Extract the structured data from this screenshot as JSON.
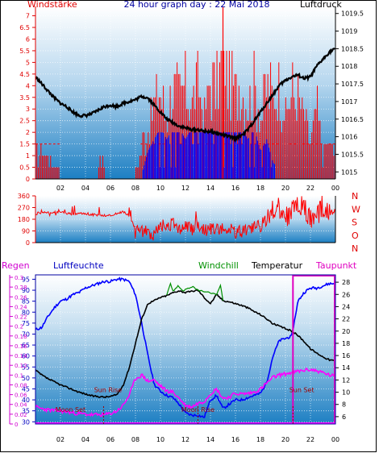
{
  "chart_data": [
    {
      "id": "wind_pressure",
      "type": "line",
      "title": "24 hour graph day : 22 Mai 2018",
      "left_label": "Windstärke",
      "right_label": "Luftdruck",
      "x_ticks": [
        "02",
        "04",
        "06",
        "08",
        "10",
        "12",
        "14",
        "16",
        "18",
        "20",
        "22",
        "00"
      ],
      "left_ticks": [
        "0",
        "0.5",
        "1",
        "1.5",
        "2",
        "2.5",
        "3",
        "3.5",
        "4",
        "4.5",
        "5",
        "5.5",
        "6",
        "6.5",
        "7"
      ],
      "right_ticks": [
        "1015",
        "1015.5",
        "1016",
        "1016.5",
        "1017",
        "1017.5",
        "1018",
        "1018.5",
        "1019",
        "1019.5"
      ],
      "ylim_left": [
        0,
        7.4
      ],
      "ylim_right": [
        1014.8,
        1019.7
      ],
      "pressure": [
        [
          0.0,
          1017.7
        ],
        [
          0.5,
          1017.5
        ],
        [
          1.0,
          1017.3
        ],
        [
          1.5,
          1017.1
        ],
        [
          2.0,
          1016.95
        ],
        [
          2.5,
          1016.85
        ],
        [
          3.0,
          1016.7
        ],
        [
          3.5,
          1016.6
        ],
        [
          4.0,
          1016.6
        ],
        [
          4.5,
          1016.65
        ],
        [
          5.0,
          1016.75
        ],
        [
          5.5,
          1016.85
        ],
        [
          6.0,
          1016.9
        ],
        [
          6.5,
          1016.85
        ],
        [
          7.0,
          1016.95
        ],
        [
          7.5,
          1017.0
        ],
        [
          8.0,
          1017.05
        ],
        [
          8.5,
          1017.15
        ],
        [
          9.0,
          1017.1
        ],
        [
          9.5,
          1016.9
        ],
        [
          10.0,
          1016.7
        ],
        [
          10.5,
          1016.5
        ],
        [
          11.0,
          1016.4
        ],
        [
          11.5,
          1016.3
        ],
        [
          12.0,
          1016.25
        ],
        [
          12.5,
          1016.2
        ],
        [
          13.0,
          1016.2
        ],
        [
          13.5,
          1016.15
        ],
        [
          14.0,
          1016.15
        ],
        [
          14.5,
          1016.1
        ],
        [
          15.0,
          1016.05
        ],
        [
          15.5,
          1016.0
        ],
        [
          16.0,
          1015.95
        ],
        [
          16.5,
          1016.05
        ],
        [
          17.0,
          1016.2
        ],
        [
          17.5,
          1016.45
        ],
        [
          18.0,
          1016.7
        ],
        [
          18.5,
          1016.95
        ],
        [
          19.0,
          1017.2
        ],
        [
          19.5,
          1017.45
        ],
        [
          20.0,
          1017.6
        ],
        [
          20.5,
          1017.7
        ],
        [
          21.0,
          1017.75
        ],
        [
          21.5,
          1017.65
        ],
        [
          22.0,
          1017.7
        ],
        [
          22.5,
          1018.0
        ],
        [
          23.0,
          1018.2
        ],
        [
          23.5,
          1018.4
        ],
        [
          24.0,
          1018.5
        ]
      ],
      "wind_gust": [
        [
          0.0,
          1.5
        ],
        [
          1.0,
          1.5
        ],
        [
          2.0,
          0
        ],
        [
          3.0,
          0
        ],
        [
          4.0,
          0
        ],
        [
          5.0,
          0
        ],
        [
          5.2,
          1.5
        ],
        [
          5.6,
          0
        ],
        [
          6.0,
          0
        ],
        [
          7.0,
          0
        ],
        [
          8.0,
          0
        ],
        [
          8.5,
          2.0
        ],
        [
          9.0,
          2.5
        ],
        [
          9.5,
          4.5
        ],
        [
          10.0,
          5.0
        ],
        [
          10.5,
          3.5
        ],
        [
          11.0,
          5.5
        ],
        [
          11.5,
          4.5
        ],
        [
          12.0,
          5.5
        ],
        [
          12.5,
          4.0
        ],
        [
          13.0,
          5.5
        ],
        [
          13.5,
          3.5
        ],
        [
          14.0,
          5.5
        ],
        [
          14.5,
          5.0
        ],
        [
          15.0,
          7.5
        ],
        [
          15.5,
          5.5
        ],
        [
          16.0,
          5.0
        ],
        [
          16.5,
          5.5
        ],
        [
          17.0,
          4.0
        ],
        [
          17.5,
          5.5
        ],
        [
          18.0,
          3.5
        ],
        [
          18.5,
          5.5
        ],
        [
          19.0,
          4.5
        ],
        [
          19.5,
          5.5
        ],
        [
          20.0,
          3.5
        ],
        [
          20.5,
          5.0
        ],
        [
          21.0,
          4.5
        ],
        [
          21.5,
          3.5
        ],
        [
          22.0,
          2.0
        ],
        [
          22.5,
          4.0
        ],
        [
          23.0,
          1.5
        ],
        [
          23.5,
          2.0
        ],
        [
          24.0,
          1.5
        ]
      ],
      "wind_avg": [
        [
          0.0,
          0
        ],
        [
          8.5,
          0
        ],
        [
          9.0,
          1.0
        ],
        [
          9.5,
          1.5
        ],
        [
          10.0,
          2.0
        ],
        [
          10.5,
          1.5
        ],
        [
          11.0,
          2.0
        ],
        [
          11.5,
          2.0
        ],
        [
          12.0,
          1.5
        ],
        [
          12.5,
          2.0
        ],
        [
          13.0,
          2.0
        ],
        [
          13.5,
          2.0
        ],
        [
          14.0,
          2.0
        ],
        [
          14.5,
          2.0
        ],
        [
          15.0,
          2.0
        ],
        [
          15.5,
          2.0
        ],
        [
          16.0,
          2.0
        ],
        [
          16.5,
          2.0
        ],
        [
          17.0,
          1.5
        ],
        [
          17.5,
          2.0
        ],
        [
          18.0,
          1.0
        ],
        [
          18.5,
          1.5
        ],
        [
          19.0,
          0.5
        ],
        [
          20.0,
          0
        ],
        [
          24.0,
          0
        ]
      ]
    },
    {
      "id": "wind_direction",
      "type": "line",
      "left_ticks": [
        "0",
        "90",
        "180",
        "270",
        "360"
      ],
      "right_labels": [
        "N",
        "W",
        "S",
        "O",
        "N"
      ],
      "ylim": [
        0,
        360
      ],
      "direction": [
        [
          0.0,
          225
        ],
        [
          1.0,
          230
        ],
        [
          2.0,
          240
        ],
        [
          3.0,
          215
        ],
        [
          4.0,
          225
        ],
        [
          5.0,
          210
        ],
        [
          6.0,
          210
        ],
        [
          7.0,
          240
        ],
        [
          7.5,
          210
        ],
        [
          8.0,
          100
        ],
        [
          8.5,
          90
        ],
        [
          9.0,
          80
        ],
        [
          9.5,
          60
        ],
        [
          10.0,
          120
        ],
        [
          10.5,
          110
        ],
        [
          11.0,
          150
        ],
        [
          11.5,
          100
        ],
        [
          12.0,
          140
        ],
        [
          12.5,
          100
        ],
        [
          13.0,
          130
        ],
        [
          13.5,
          90
        ],
        [
          14.0,
          110
        ],
        [
          14.5,
          120
        ],
        [
          15.0,
          100
        ],
        [
          15.5,
          110
        ],
        [
          16.0,
          80
        ],
        [
          16.5,
          90
        ],
        [
          17.0,
          100
        ],
        [
          17.5,
          120
        ],
        [
          18.0,
          150
        ],
        [
          18.5,
          220
        ],
        [
          19.0,
          260
        ],
        [
          19.5,
          280
        ],
        [
          20.0,
          200
        ],
        [
          20.5,
          240
        ],
        [
          21.0,
          280
        ],
        [
          21.5,
          260
        ],
        [
          22.0,
          200
        ],
        [
          22.5,
          230
        ],
        [
          23.0,
          240
        ],
        [
          23.5,
          220
        ],
        [
          24.0,
          230
        ]
      ]
    },
    {
      "id": "humidity_temperature",
      "type": "line",
      "left_label_1": "Regen",
      "left_label_2": "Luftfeuchte",
      "right_labels": [
        "Windchill",
        "Temperatur",
        "Taupunkt"
      ],
      "rain_ticks": [
        "0",
        "0.02",
        "0.04",
        "0.06",
        "0.08",
        "0.1",
        "0.12",
        "0.14",
        "0.16",
        "0.18",
        "0.2",
        "0.22",
        "0.24",
        "0.26",
        "0.28",
        "0.3"
      ],
      "humidity_ticks": [
        "30",
        "35",
        "40",
        "45",
        "50",
        "55",
        "60",
        "65",
        "70",
        "75",
        "80",
        "85",
        "90",
        "95"
      ],
      "temp_ticks": [
        "6",
        "8",
        "10",
        "12",
        "14",
        "16",
        "18",
        "20",
        "22",
        "24",
        "26",
        "28"
      ],
      "ylim_humidity": [
        29,
        97
      ],
      "ylim_temp": [
        4.8,
        29.2
      ],
      "annotations": [
        {
          "text": "Moon Set",
          "x": 2.8,
          "y": 6.8
        },
        {
          "text": "Sun Rise",
          "x": 5.8,
          "y": 10.0
        },
        {
          "text": "Moon Rise",
          "x": 13.0,
          "y": 6.8
        },
        {
          "text": "Sun Set",
          "x": 21.3,
          "y": 10.0
        }
      ],
      "humidity": [
        [
          0.0,
          72
        ],
        [
          0.5,
          73
        ],
        [
          1.0,
          78
        ],
        [
          1.5,
          82
        ],
        [
          2.0,
          85
        ],
        [
          2.5,
          86
        ],
        [
          3.0,
          88
        ],
        [
          3.5,
          89
        ],
        [
          4.0,
          91
        ],
        [
          4.5,
          92
        ],
        [
          5.0,
          93
        ],
        [
          5.5,
          94
        ],
        [
          6.0,
          94
        ],
        [
          6.5,
          95
        ],
        [
          7.0,
          95
        ],
        [
          7.5,
          94
        ],
        [
          8.0,
          88
        ],
        [
          8.5,
          75
        ],
        [
          9.0,
          60
        ],
        [
          9.5,
          47
        ],
        [
          10.0,
          44
        ],
        [
          10.5,
          42
        ],
        [
          11.0,
          41
        ],
        [
          11.5,
          38
        ],
        [
          12.0,
          34
        ],
        [
          12.5,
          33
        ],
        [
          13.0,
          33
        ],
        [
          13.5,
          32
        ],
        [
          14.0,
          40
        ],
        [
          14.5,
          42
        ],
        [
          15.0,
          36
        ],
        [
          15.5,
          38
        ],
        [
          16.0,
          40
        ],
        [
          16.5,
          40
        ],
        [
          17.0,
          41
        ],
        [
          17.5,
          42
        ],
        [
          18.0,
          43
        ],
        [
          18.5,
          48
        ],
        [
          19.0,
          60
        ],
        [
          19.5,
          67
        ],
        [
          20.0,
          68
        ],
        [
          20.5,
          69
        ],
        [
          21.0,
          85
        ],
        [
          21.5,
          89
        ],
        [
          22.0,
          91
        ],
        [
          22.5,
          91
        ],
        [
          23.0,
          92
        ],
        [
          23.5,
          93
        ],
        [
          24.0,
          93
        ]
      ],
      "temperature": [
        [
          0.0,
          13.6
        ],
        [
          0.5,
          12.8
        ],
        [
          1.0,
          12.2
        ],
        [
          1.5,
          11.7
        ],
        [
          2.0,
          11.2
        ],
        [
          2.5,
          10.8
        ],
        [
          3.0,
          10.4
        ],
        [
          3.5,
          10.0
        ],
        [
          4.0,
          9.7
        ],
        [
          4.5,
          9.4
        ],
        [
          5.0,
          9.3
        ],
        [
          5.5,
          9.2
        ],
        [
          6.0,
          9.3
        ],
        [
          6.5,
          9.6
        ],
        [
          7.0,
          11.0
        ],
        [
          7.5,
          14.0
        ],
        [
          8.0,
          18.0
        ],
        [
          8.5,
          22.0
        ],
        [
          9.0,
          24.5
        ],
        [
          9.5,
          25.0
        ],
        [
          10.0,
          25.5
        ],
        [
          10.5,
          25.8
        ],
        [
          11.0,
          26.3
        ],
        [
          11.5,
          26.6
        ],
        [
          12.0,
          26.3
        ],
        [
          12.5,
          26.5
        ],
        [
          13.0,
          26.7
        ],
        [
          13.5,
          25.5
        ],
        [
          14.0,
          24.5
        ],
        [
          14.5,
          26.0
        ],
        [
          15.0,
          25.0
        ],
        [
          15.5,
          24.8
        ],
        [
          16.0,
          24.5
        ],
        [
          16.5,
          24.2
        ],
        [
          17.0,
          23.8
        ],
        [
          17.5,
          23.2
        ],
        [
          18.0,
          22.7
        ],
        [
          18.5,
          22.0
        ],
        [
          19.0,
          21.2
        ],
        [
          19.5,
          20.8
        ],
        [
          20.0,
          20.4
        ],
        [
          20.5,
          20.0
        ],
        [
          21.0,
          19.3
        ],
        [
          21.5,
          18.3
        ],
        [
          22.0,
          17.1
        ],
        [
          22.5,
          16.4
        ],
        [
          23.0,
          15.8
        ],
        [
          23.5,
          15.3
        ],
        [
          24.0,
          15.1
        ]
      ],
      "windchill": [
        [
          10.5,
          26.0
        ],
        [
          10.8,
          27.8
        ],
        [
          11.0,
          26.5
        ],
        [
          11.4,
          27.4
        ],
        [
          11.8,
          26.6
        ],
        [
          12.2,
          27.0
        ],
        [
          12.6,
          27.2
        ],
        [
          13.0,
          26.7
        ],
        [
          14.5,
          26.0
        ],
        [
          14.8,
          27.6
        ],
        [
          15.0,
          25.0
        ]
      ],
      "dewpoint": [
        [
          0.0,
          7.6
        ],
        [
          0.5,
          7.3
        ],
        [
          1.0,
          7.1
        ],
        [
          1.5,
          7.0
        ],
        [
          2.0,
          6.9
        ],
        [
          2.5,
          6.8
        ],
        [
          3.0,
          6.6
        ],
        [
          3.5,
          6.5
        ],
        [
          4.0,
          6.4
        ],
        [
          4.5,
          6.3
        ],
        [
          5.0,
          6.3
        ],
        [
          5.5,
          6.3
        ],
        [
          6.0,
          6.5
        ],
        [
          6.5,
          6.9
        ],
        [
          7.0,
          7.8
        ],
        [
          7.5,
          9.5
        ],
        [
          8.0,
          12.2
        ],
        [
          8.5,
          12.8
        ],
        [
          9.0,
          11.8
        ],
        [
          9.5,
          12.0
        ],
        [
          10.0,
          11.0
        ],
        [
          10.5,
          10.2
        ],
        [
          11.0,
          10.0
        ],
        [
          11.5,
          9.0
        ],
        [
          12.0,
          7.8
        ],
        [
          12.5,
          7.6
        ],
        [
          13.0,
          8.2
        ],
        [
          13.5,
          8.5
        ],
        [
          14.0,
          9.8
        ],
        [
          14.5,
          10.5
        ],
        [
          15.0,
          9.0
        ],
        [
          15.5,
          9.2
        ],
        [
          16.0,
          9.8
        ],
        [
          16.5,
          9.7
        ],
        [
          17.0,
          9.8
        ],
        [
          17.5,
          10.0
        ],
        [
          18.0,
          10.5
        ],
        [
          18.5,
          11.5
        ],
        [
          19.0,
          12.4
        ],
        [
          19.5,
          12.8
        ],
        [
          20.0,
          13.0
        ],
        [
          20.5,
          13.2
        ],
        [
          21.0,
          13.4
        ],
        [
          21.5,
          13.6
        ],
        [
          22.0,
          13.7
        ],
        [
          22.5,
          13.5
        ],
        [
          23.0,
          13.2
        ],
        [
          23.5,
          12.8
        ],
        [
          24.0,
          12.6
        ]
      ],
      "rain_window": [
        20.6,
        24.0
      ]
    }
  ]
}
